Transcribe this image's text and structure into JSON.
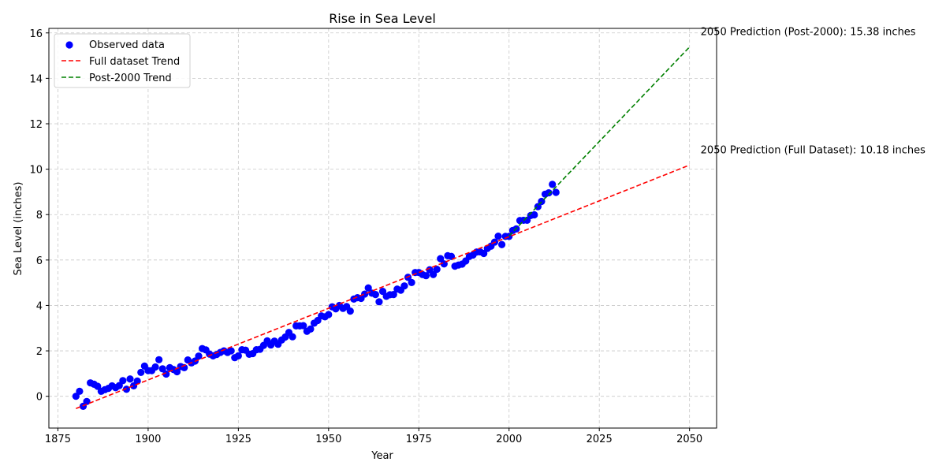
{
  "chart_data": {
    "type": "scatter",
    "title": "Rise in Sea Level",
    "xlabel": "Year",
    "ylabel": "Sea Level (inches)",
    "xlim": [
      1872.5,
      2057.5
    ],
    "ylim": [
      -1.4,
      16.2
    ],
    "xticks": [
      1875,
      1900,
      1925,
      1950,
      1975,
      2000,
      2025,
      2050
    ],
    "yticks": [
      0,
      2,
      4,
      6,
      8,
      10,
      12,
      14,
      16
    ],
    "grid": true,
    "legend_position": "top-left",
    "legend": [
      "Observed data",
      "Full dataset Trend",
      "Post-2000 Trend"
    ],
    "colors": {
      "observed": "#0000ff",
      "full_trend": "#ff0000",
      "post2000_trend": "#008000",
      "grid": "#c8c8c8"
    },
    "observed": {
      "name": "Observed data",
      "x": [
        1880,
        1881,
        1882,
        1883,
        1884,
        1885,
        1886,
        1887,
        1888,
        1889,
        1890,
        1891,
        1892,
        1893,
        1894,
        1895,
        1896,
        1897,
        1898,
        1899,
        1900,
        1901,
        1902,
        1903,
        1904,
        1905,
        1906,
        1907,
        1908,
        1909,
        1910,
        1911,
        1912,
        1913,
        1914,
        1915,
        1916,
        1917,
        1918,
        1919,
        1920,
        1921,
        1922,
        1923,
        1924,
        1925,
        1926,
        1927,
        1928,
        1929,
        1930,
        1931,
        1932,
        1933,
        1934,
        1935,
        1936,
        1937,
        1938,
        1939,
        1940,
        1941,
        1942,
        1943,
        1944,
        1945,
        1946,
        1947,
        1948,
        1949,
        1950,
        1951,
        1952,
        1953,
        1954,
        1955,
        1956,
        1957,
        1958,
        1959,
        1960,
        1961,
        1962,
        1963,
        1964,
        1965,
        1966,
        1967,
        1968,
        1969,
        1970,
        1971,
        1972,
        1973,
        1974,
        1975,
        1976,
        1977,
        1978,
        1979,
        1980,
        1981,
        1982,
        1983,
        1984,
        1985,
        1986,
        1987,
        1988,
        1989,
        1990,
        1991,
        1992,
        1993,
        1994,
        1995,
        1996,
        1997,
        1998,
        1999,
        2000,
        2001,
        2002,
        2003,
        2004,
        2005,
        2006,
        2007,
        2008,
        2009,
        2010,
        2011,
        2012,
        2013
      ],
      "y": [
        0.0,
        0.22,
        -0.44,
        -0.23,
        0.59,
        0.53,
        0.44,
        0.22,
        0.29,
        0.35,
        0.46,
        0.38,
        0.47,
        0.69,
        0.31,
        0.76,
        0.46,
        0.67,
        1.05,
        1.33,
        1.13,
        1.13,
        1.29,
        1.61,
        1.21,
        0.98,
        1.26,
        1.18,
        1.08,
        1.31,
        1.26,
        1.6,
        1.47,
        1.55,
        1.77,
        2.1,
        2.04,
        1.86,
        1.78,
        1.84,
        1.93,
        2.0,
        1.93,
        2.0,
        1.7,
        1.78,
        2.05,
        2.03,
        1.85,
        1.88,
        2.05,
        2.07,
        2.24,
        2.44,
        2.26,
        2.43,
        2.29,
        2.48,
        2.61,
        2.81,
        2.62,
        3.1,
        3.1,
        3.11,
        2.86,
        2.96,
        3.22,
        3.34,
        3.54,
        3.5,
        3.6,
        3.94,
        3.85,
        4.0,
        3.87,
        3.95,
        3.75,
        4.28,
        4.34,
        4.31,
        4.5,
        4.77,
        4.54,
        4.48,
        4.16,
        4.62,
        4.4,
        4.47,
        4.48,
        4.72,
        4.67,
        4.86,
        5.24,
        5.01,
        5.45,
        5.45,
        5.36,
        5.31,
        5.57,
        5.36,
        5.59,
        6.06,
        5.83,
        6.19,
        6.16,
        5.73,
        5.78,
        5.82,
        5.96,
        6.16,
        6.22,
        6.35,
        6.36,
        6.29,
        6.51,
        6.61,
        6.79,
        7.05,
        6.68,
        7.04,
        7.04,
        7.3,
        7.37,
        7.74,
        7.75,
        7.75,
        7.96,
        7.99,
        8.35,
        8.58,
        8.9,
        8.96,
        9.33,
        8.98
      ]
    },
    "series": [
      {
        "name": "Full dataset Trend",
        "x": [
          1880,
          2050
        ],
        "y": [
          -0.54,
          10.18
        ]
      },
      {
        "name": "Post-2000 Trend",
        "x": [
          2000,
          2050
        ],
        "y": [
          7.06,
          15.38
        ]
      }
    ],
    "annotations": [
      {
        "text": "2050 Prediction (Post-2000): 15.38 inches",
        "x": 2050,
        "y": 15.38
      },
      {
        "text": "2050 Prediction (Full Dataset): 10.18 inches",
        "x": 2050,
        "y": 10.18
      }
    ]
  }
}
